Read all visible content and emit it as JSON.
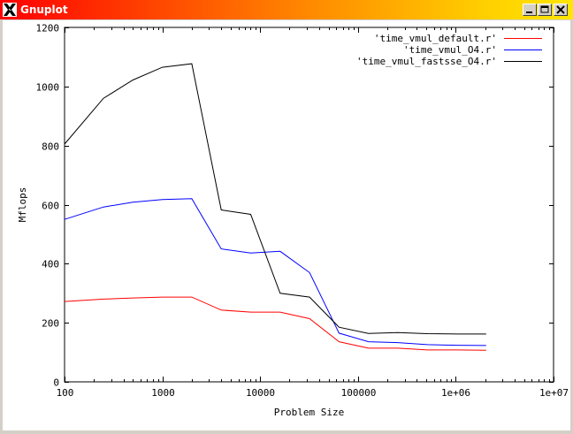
{
  "window": {
    "title": "Gnuplot"
  },
  "chart_data": {
    "type": "line",
    "xscale": "log",
    "xlim": [
      100,
      10000000
    ],
    "ylim": [
      0,
      1200
    ],
    "xlabel": "Problem Size",
    "ylabel": "Mflops",
    "x_ticks": [
      "100",
      "1000",
      "10000",
      "100000",
      "1e+06",
      "1e+07"
    ],
    "y_ticks": [
      "0",
      "200",
      "400",
      "600",
      "800",
      "1000",
      "1200"
    ],
    "legend_position": "top-right",
    "x": [
      100,
      250,
      500,
      1000,
      2000,
      4000,
      8000,
      16000,
      32000,
      64000,
      128000,
      256000,
      512000,
      1024000,
      2048000
    ],
    "series": [
      {
        "name": "'time_vmul_default.r'",
        "color": "#ff0000",
        "values": [
          272,
          280,
          284,
          287,
          287,
          243,
          236,
          236,
          214,
          136,
          114,
          114,
          108,
          108,
          107
        ]
      },
      {
        "name": "'time_vmul_O4.r'",
        "color": "#0000ff",
        "values": [
          550,
          592,
          608,
          617,
          620,
          450,
          436,
          442,
          370,
          165,
          136,
          133,
          126,
          124,
          123
        ]
      },
      {
        "name": "'time_vmul_fastsse_O4.r'",
        "color": "#000000",
        "values": [
          805,
          960,
          1022,
          1065,
          1077,
          582,
          567,
          300,
          287,
          185,
          164,
          167,
          163,
          162,
          162
        ]
      }
    ]
  }
}
